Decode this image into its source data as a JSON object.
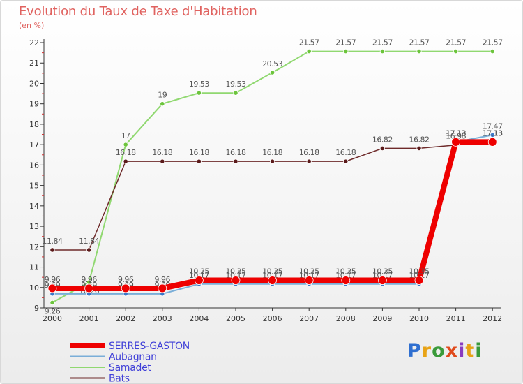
{
  "title": "Evolution du Taux de Taxe d'Habitation",
  "subtitle": "(en %)",
  "brand": {
    "text": "Proxiti",
    "letter_colors": [
      "#2f6fd0",
      "#e8a316",
      "#3a9a3a",
      "#e04a1c",
      "#8a3cc0",
      "#e8a316",
      "#3a9a3a"
    ]
  },
  "chart_data": {
    "type": "line",
    "categories": [
      "2000",
      "2001",
      "2002",
      "2003",
      "2004",
      "2005",
      "2006",
      "2007",
      "2008",
      "2009",
      "2010",
      "2011",
      "2012"
    ],
    "yticks": [
      "9",
      "10",
      "11",
      "12",
      "13",
      "14",
      "15",
      "16",
      "17",
      "18",
      "19",
      "20",
      "21",
      "22"
    ],
    "ylim": [
      9,
      22
    ],
    "grid": false,
    "legend_position": "bottom-left",
    "series": [
      {
        "name": "Samadet",
        "color": "#90d870",
        "marker": "#6cc43c",
        "width": 2,
        "values": [
          9.26,
          10.26,
          17,
          19,
          19.53,
          19.53,
          20.53,
          21.57,
          21.57,
          21.57,
          21.57,
          21.57,
          21.57
        ],
        "labels": [
          "9.26",
          "10.26",
          "17",
          "19",
          "19.53",
          "19.53",
          "20.53",
          "21.57",
          "21.57",
          "21.57",
          "21.57",
          "21.57",
          "21.57"
        ],
        "label_pos": "below-above"
      },
      {
        "name": "Bats",
        "color": "#6e2a2a",
        "marker": "#5a1a1a",
        "width": 1.5,
        "values": [
          11.84,
          11.84,
          16.18,
          16.18,
          16.18,
          16.18,
          16.18,
          16.18,
          16.18,
          16.82,
          16.82,
          16.98,
          17.13
        ],
        "labels": [
          "11.84",
          "11.84",
          "16.18",
          "16.18",
          "16.18",
          "16.18",
          "16.18",
          "16.18",
          "16.18",
          "16.82",
          "16.82",
          "16.98",
          "17.13"
        ],
        "label_pos": "above"
      },
      {
        "name": "Aubagnan",
        "color": "#7aaed8",
        "marker": "#3a78c8",
        "width": 2,
        "values": [
          9.69,
          9.69,
          9.69,
          9.69,
          10.17,
          10.17,
          10.17,
          10.17,
          10.17,
          10.17,
          10.17,
          17.13,
          17.47
        ],
        "labels": [
          "9.69",
          "9.69",
          "9.69",
          "9.69",
          "10.17",
          "10.17",
          "10.17",
          "10.17",
          "10.17",
          "10.17",
          "10.17",
          "17.13",
          "17.47"
        ],
        "label_pos": "above"
      },
      {
        "name": "SERRES-GASTON",
        "color": "#ee0000",
        "marker": "#ee0000",
        "width": 8,
        "values": [
          9.96,
          9.96,
          9.96,
          9.96,
          10.35,
          10.35,
          10.35,
          10.35,
          10.35,
          10.35,
          10.35,
          17.13,
          17.13
        ],
        "labels": [
          "9.96",
          "9.96",
          "9.96",
          "9.96",
          "10.35",
          "10.35",
          "10.35",
          "10.35",
          "10.35",
          "10.35",
          "10.35",
          "17.13",
          "17.13"
        ],
        "label_pos": "above"
      }
    ],
    "legend": [
      "SERRES-GASTON",
      "Aubagnan",
      "Samadet",
      "Bats"
    ]
  }
}
